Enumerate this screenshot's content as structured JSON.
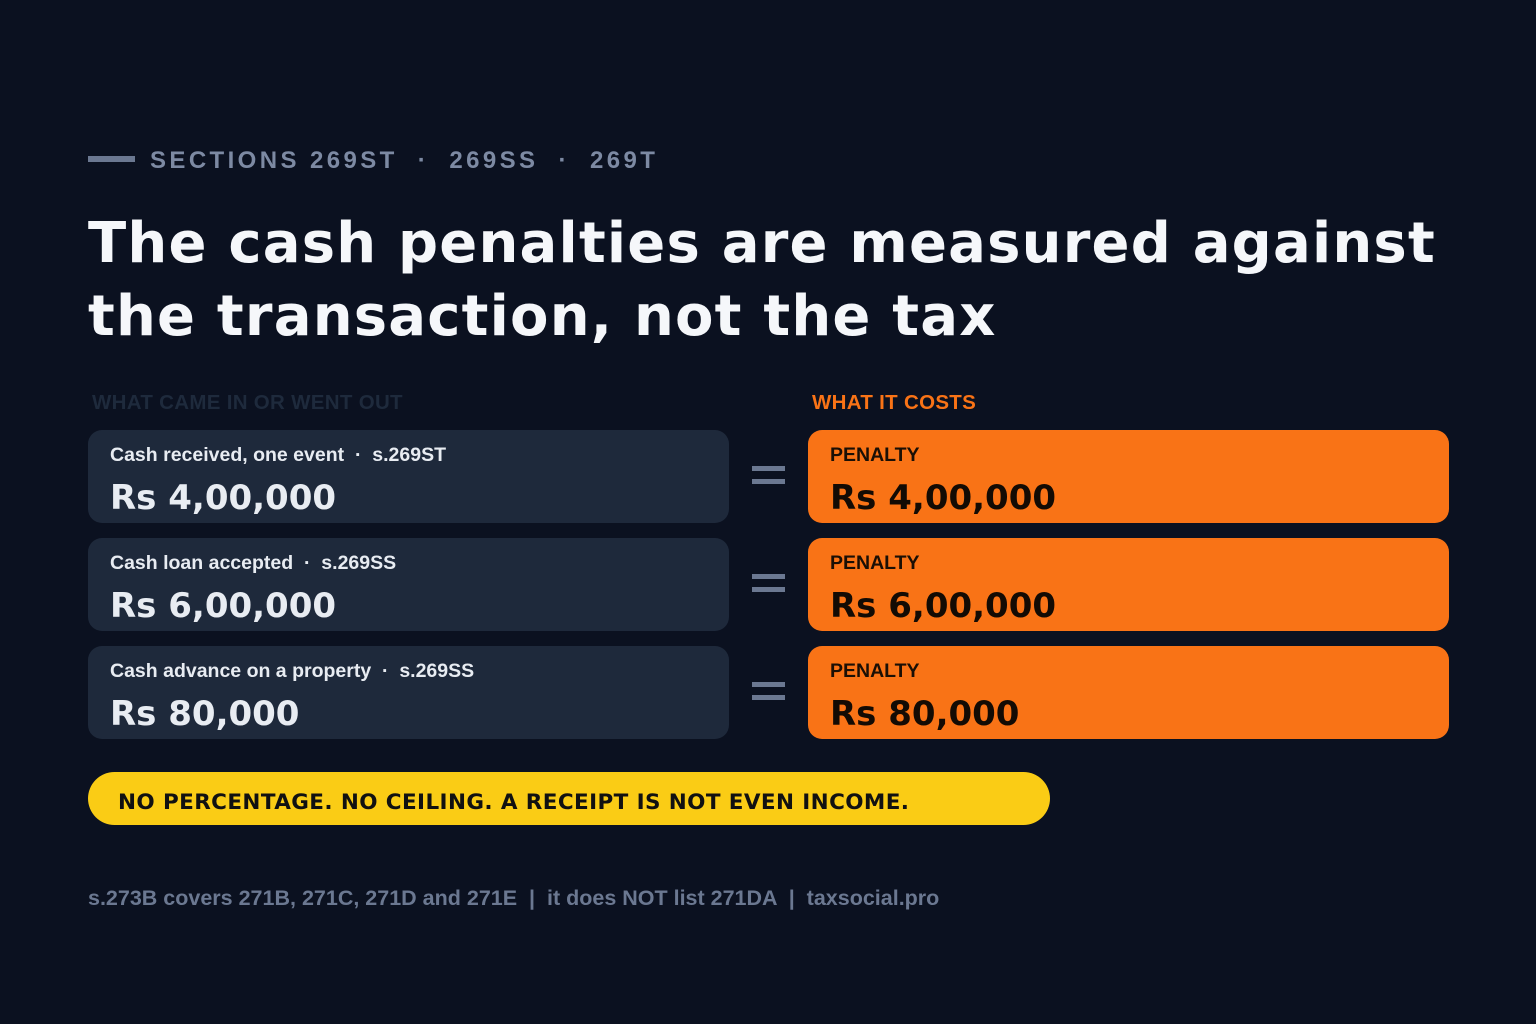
{
  "eyebrow": {
    "text": "SECTIONS 269ST  ·  269SS  ·  269T"
  },
  "headline": "The cash penalties are measured against the transaction, not the tax",
  "columns": {
    "left_label": "WHAT CAME IN OR WENT OUT",
    "right_label": "WHAT IT COSTS"
  },
  "rows": [
    {
      "in_label": "Cash received, one event  ·  s.269ST",
      "in_amount": "Rs 4,00,000",
      "penalty_label": "PENALTY",
      "penalty_amount": "Rs 4,00,000"
    },
    {
      "in_label": "Cash loan accepted  ·  s.269SS",
      "in_amount": "Rs 6,00,000",
      "penalty_label": "PENALTY",
      "penalty_amount": "Rs 6,00,000"
    },
    {
      "in_label": "Cash advance on a property  ·  s.269SS",
      "in_amount": "Rs 80,000",
      "penalty_label": "PENALTY",
      "penalty_amount": "Rs 80,000"
    }
  ],
  "banner": "NO PERCENTAGE. NO CEILING. A RECEIPT IS NOT EVEN INCOME.",
  "footnote": "s.273B covers 271B, 271C, 271D and 271E  |  it does NOT list 271DA  |  taxsocial.pro",
  "colors": {
    "background": "#0b1120",
    "card": "#1e293b",
    "accent": "#f97316",
    "banner": "#facc15",
    "muted": "#7d8aa3"
  }
}
